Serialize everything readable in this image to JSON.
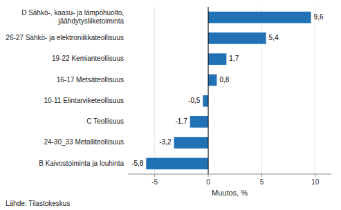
{
  "chart_data": {
    "type": "bar",
    "orientation": "horizontal",
    "categories": [
      "B Kaivostoiminta ja louhinta",
      "24-30_33 Metalliteollisuus",
      "C Teollisuus",
      "10-11 Elintarviketeollisuus",
      "16-17 Metsäteollisuus",
      "19-22 Kemianteollisuus",
      "26-27 Sähkö- ja elektroniikkateollisuus",
      "D Sähkö-, kaasu- ja lämpöhuolto,\njäähdytysliiketoiminta"
    ],
    "values": [
      -5.8,
      -3.2,
      -1.7,
      -0.5,
      0.8,
      1.7,
      5.4,
      9.6
    ],
    "value_labels": [
      "-5,8",
      "-3,2",
      "-1,7",
      "-0,5",
      "0,8",
      "1,7",
      "5,4",
      "9,6"
    ],
    "data_labels": true,
    "color": "#2171B5",
    "xlabel": "Muutos, %",
    "xlim": [
      -7.5,
      11.5
    ],
    "xticks": [
      -5,
      0,
      5,
      10
    ],
    "grid": true,
    "source": "Lähde: Tilastokeskus"
  }
}
